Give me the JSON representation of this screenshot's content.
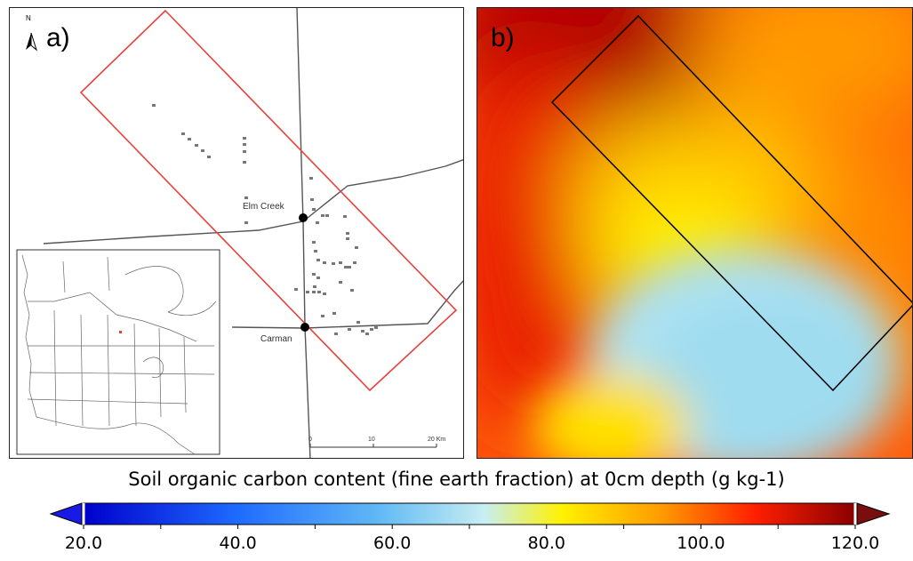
{
  "panel_a": {
    "label": "a)",
    "north_label": "N",
    "places": [
      {
        "name": "Elm Creek"
      },
      {
        "name": "Carman"
      }
    ],
    "scale_bar": {
      "ticks": [
        "0",
        "10",
        "20 Km"
      ]
    },
    "study_area_color": "#e8413a"
  },
  "panel_b": {
    "label": "b)",
    "outline_color": "#000000"
  },
  "legend": {
    "title": "Soil organic carbon content (fine earth fraction) at 0cm depth (g kg-1)",
    "tick_labels": [
      "20.0",
      "40.0",
      "60.0",
      "80.0",
      "100.0",
      "120.0"
    ],
    "range": [
      20.0,
      120.0
    ],
    "colors": {
      "under": "#1a1ae6",
      "over": "#7a0d0d",
      "stops": [
        "#0000cc",
        "#1f6bff",
        "#5fb8f5",
        "#c8eef2",
        "#fff200",
        "#ff9a00",
        "#ff1f00",
        "#8b0000"
      ]
    }
  }
}
